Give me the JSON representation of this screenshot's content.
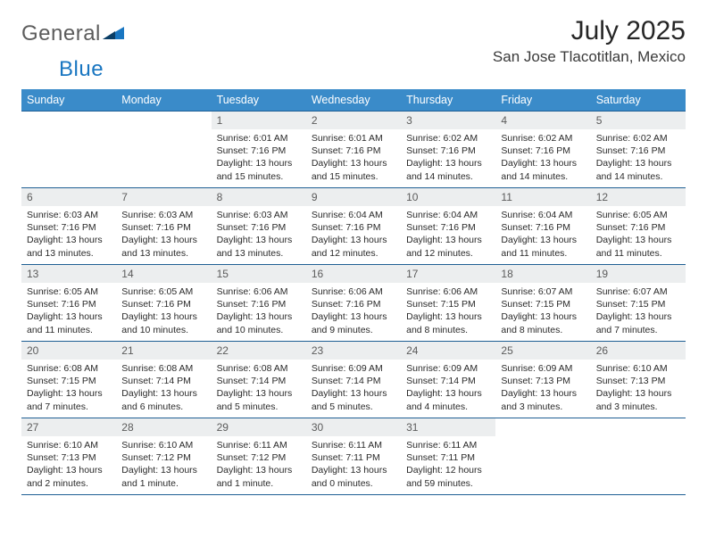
{
  "brand": {
    "name_a": "General",
    "name_b": "Blue"
  },
  "title": "July 2025",
  "location": "San Jose Tlacotitlan, Mexico",
  "colors": {
    "header_bg": "#3a8bc9",
    "header_text": "#ffffff",
    "row_border": "#1f5f94",
    "daynum_bg": "#eceeef",
    "daynum_text": "#5b5b5b",
    "body_text": "#2a2a2a",
    "logo_gray": "#5c5c5c",
    "logo_blue": "#1976c1"
  },
  "typography": {
    "title_fontsize": 30,
    "location_fontsize": 17,
    "header_fontsize": 12.5,
    "daynum_fontsize": 12,
    "info_fontsize": 10.5
  },
  "weekdays": [
    "Sunday",
    "Monday",
    "Tuesday",
    "Wednesday",
    "Thursday",
    "Friday",
    "Saturday"
  ],
  "first_weekday_index": 2,
  "num_days": 31,
  "days": {
    "1": {
      "sunrise": "6:01 AM",
      "sunset": "7:16 PM",
      "daylight": "13 hours and 15 minutes."
    },
    "2": {
      "sunrise": "6:01 AM",
      "sunset": "7:16 PM",
      "daylight": "13 hours and 15 minutes."
    },
    "3": {
      "sunrise": "6:02 AM",
      "sunset": "7:16 PM",
      "daylight": "13 hours and 14 minutes."
    },
    "4": {
      "sunrise": "6:02 AM",
      "sunset": "7:16 PM",
      "daylight": "13 hours and 14 minutes."
    },
    "5": {
      "sunrise": "6:02 AM",
      "sunset": "7:16 PM",
      "daylight": "13 hours and 14 minutes."
    },
    "6": {
      "sunrise": "6:03 AM",
      "sunset": "7:16 PM",
      "daylight": "13 hours and 13 minutes."
    },
    "7": {
      "sunrise": "6:03 AM",
      "sunset": "7:16 PM",
      "daylight": "13 hours and 13 minutes."
    },
    "8": {
      "sunrise": "6:03 AM",
      "sunset": "7:16 PM",
      "daylight": "13 hours and 13 minutes."
    },
    "9": {
      "sunrise": "6:04 AM",
      "sunset": "7:16 PM",
      "daylight": "13 hours and 12 minutes."
    },
    "10": {
      "sunrise": "6:04 AM",
      "sunset": "7:16 PM",
      "daylight": "13 hours and 12 minutes."
    },
    "11": {
      "sunrise": "6:04 AM",
      "sunset": "7:16 PM",
      "daylight": "13 hours and 11 minutes."
    },
    "12": {
      "sunrise": "6:05 AM",
      "sunset": "7:16 PM",
      "daylight": "13 hours and 11 minutes."
    },
    "13": {
      "sunrise": "6:05 AM",
      "sunset": "7:16 PM",
      "daylight": "13 hours and 11 minutes."
    },
    "14": {
      "sunrise": "6:05 AM",
      "sunset": "7:16 PM",
      "daylight": "13 hours and 10 minutes."
    },
    "15": {
      "sunrise": "6:06 AM",
      "sunset": "7:16 PM",
      "daylight": "13 hours and 10 minutes."
    },
    "16": {
      "sunrise": "6:06 AM",
      "sunset": "7:16 PM",
      "daylight": "13 hours and 9 minutes."
    },
    "17": {
      "sunrise": "6:06 AM",
      "sunset": "7:15 PM",
      "daylight": "13 hours and 8 minutes."
    },
    "18": {
      "sunrise": "6:07 AM",
      "sunset": "7:15 PM",
      "daylight": "13 hours and 8 minutes."
    },
    "19": {
      "sunrise": "6:07 AM",
      "sunset": "7:15 PM",
      "daylight": "13 hours and 7 minutes."
    },
    "20": {
      "sunrise": "6:08 AM",
      "sunset": "7:15 PM",
      "daylight": "13 hours and 7 minutes."
    },
    "21": {
      "sunrise": "6:08 AM",
      "sunset": "7:14 PM",
      "daylight": "13 hours and 6 minutes."
    },
    "22": {
      "sunrise": "6:08 AM",
      "sunset": "7:14 PM",
      "daylight": "13 hours and 5 minutes."
    },
    "23": {
      "sunrise": "6:09 AM",
      "sunset": "7:14 PM",
      "daylight": "13 hours and 5 minutes."
    },
    "24": {
      "sunrise": "6:09 AM",
      "sunset": "7:14 PM",
      "daylight": "13 hours and 4 minutes."
    },
    "25": {
      "sunrise": "6:09 AM",
      "sunset": "7:13 PM",
      "daylight": "13 hours and 3 minutes."
    },
    "26": {
      "sunrise": "6:10 AM",
      "sunset": "7:13 PM",
      "daylight": "13 hours and 3 minutes."
    },
    "27": {
      "sunrise": "6:10 AM",
      "sunset": "7:13 PM",
      "daylight": "13 hours and 2 minutes."
    },
    "28": {
      "sunrise": "6:10 AM",
      "sunset": "7:12 PM",
      "daylight": "13 hours and 1 minute."
    },
    "29": {
      "sunrise": "6:11 AM",
      "sunset": "7:12 PM",
      "daylight": "13 hours and 1 minute."
    },
    "30": {
      "sunrise": "6:11 AM",
      "sunset": "7:11 PM",
      "daylight": "13 hours and 0 minutes."
    },
    "31": {
      "sunrise": "6:11 AM",
      "sunset": "7:11 PM",
      "daylight": "12 hours and 59 minutes."
    }
  },
  "labels": {
    "sunrise": "Sunrise:",
    "sunset": "Sunset:",
    "daylight": "Daylight:"
  }
}
